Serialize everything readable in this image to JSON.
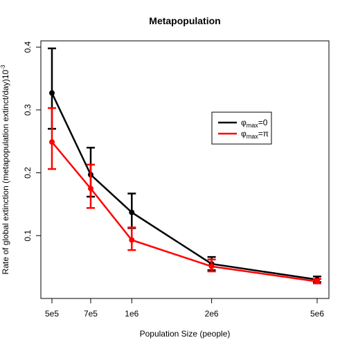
{
  "chart_data": {
    "type": "line",
    "title": "Metapopulation",
    "xlabel": "Population Size (people)",
    "ylabel": "Rate of global extinction (metapopulation extinct/day)",
    "ylabel_sup": "10",
    "ylabel_sup_exp": "-3",
    "x_scale": "log",
    "x": [
      500000,
      700000,
      1000000,
      2000000,
      5000000
    ],
    "x_tick_labels": [
      "5e5",
      "7e5",
      "1e6",
      "2e6",
      "5e6"
    ],
    "ylim": [
      0.0,
      0.41
    ],
    "y_ticks": [
      0.1,
      0.2,
      0.3,
      0.4
    ],
    "y_tick_labels": [
      "0.1",
      "0.2",
      "0.3",
      "0.4"
    ],
    "grid": false,
    "legend_position": "right",
    "series": [
      {
        "name": "φmax=0",
        "legend_base": "φ",
        "legend_sub": "max",
        "legend_rest": "=0",
        "color": "#000000",
        "values": [
          0.327,
          0.197,
          0.137,
          0.055,
          0.03
        ],
        "lower": [
          0.27,
          0.162,
          0.112,
          0.045,
          0.026
        ],
        "upper": [
          0.398,
          0.24,
          0.167,
          0.066,
          0.035
        ]
      },
      {
        "name": "φmax=π",
        "legend_base": "φ",
        "legend_sub": "max",
        "legend_rest": "=π",
        "color": "#ff0000",
        "values": [
          0.249,
          0.175,
          0.093,
          0.051,
          0.027
        ],
        "lower": [
          0.206,
          0.144,
          0.077,
          0.043,
          0.024
        ],
        "upper": [
          0.303,
          0.213,
          0.113,
          0.062,
          0.031
        ]
      }
    ]
  }
}
